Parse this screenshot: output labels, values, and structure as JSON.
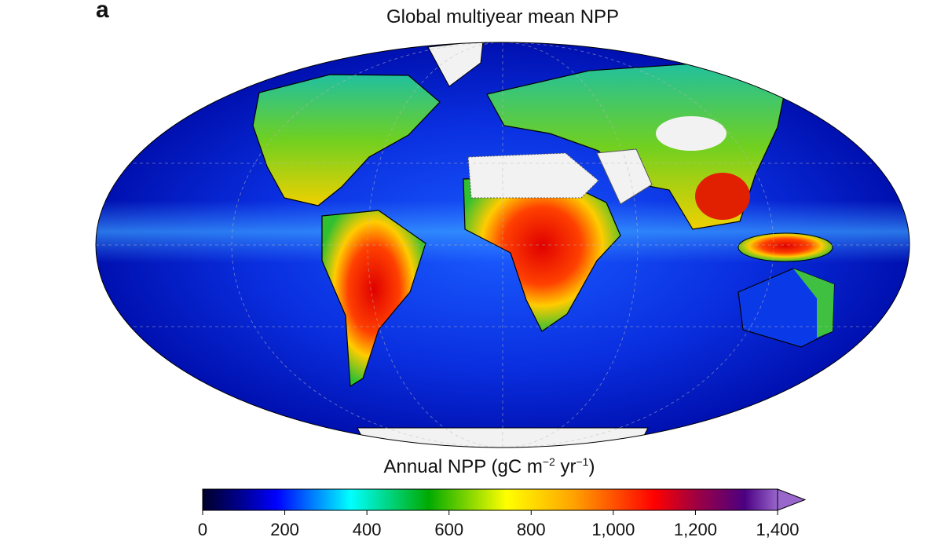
{
  "panel_label": "a",
  "title": "Global multiyear mean NPP",
  "colorbar": {
    "label_main": "Annual NPP (gC m",
    "label_exp1": "−2",
    "label_mid": " yr",
    "label_exp2": "−1",
    "label_end": ")",
    "ticks": [
      "0",
      "200",
      "400",
      "600",
      "800",
      "1,000",
      "1,200",
      "1,400"
    ],
    "tick_values": [
      0,
      200,
      400,
      600,
      800,
      1000,
      1200,
      1400
    ],
    "range": [
      0,
      1400
    ],
    "extend": "max"
  },
  "chart_data": {
    "type": "heatmap",
    "title": "Global multiyear mean NPP",
    "projection": "Mollweide",
    "variable": "Annual NPP (gC m−2 yr−1)",
    "range": [
      0,
      1400
    ],
    "colormap": [
      {
        "value": 0,
        "color": "#00002a"
      },
      {
        "value": 90,
        "color": "#00008c"
      },
      {
        "value": 180,
        "color": "#0000ff"
      },
      {
        "value": 360,
        "color": "#00ffff"
      },
      {
        "value": 550,
        "color": "#00aa00"
      },
      {
        "value": 740,
        "color": "#ffff00"
      },
      {
        "value": 900,
        "color": "#ffa500"
      },
      {
        "value": 1100,
        "color": "#ff0000"
      },
      {
        "value": 1200,
        "color": "#a00040"
      },
      {
        "value": 1320,
        "color": "#4b0082"
      },
      {
        "value": 1400,
        "color": "#9966cc"
      }
    ],
    "no_data_color": "#f2f2f2"
  }
}
